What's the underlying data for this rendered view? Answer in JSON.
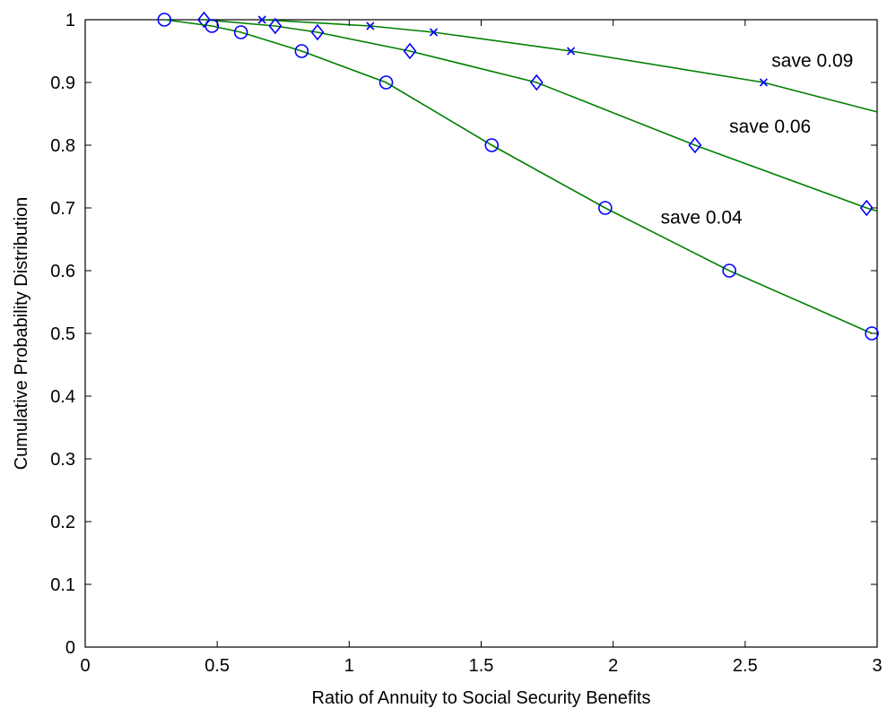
{
  "chart_data": {
    "type": "line",
    "title": "",
    "xlabel": "Ratio of Annuity to Social Security Benefits",
    "ylabel": "Cumulative Probability Distribution",
    "xlim": [
      0,
      3
    ],
    "ylim": [
      0,
      1
    ],
    "xticks": [
      "0",
      "0.5",
      "1",
      "1.5",
      "2",
      "2.5",
      "3"
    ],
    "yticks": [
      "0",
      "0.1",
      "0.2",
      "0.3",
      "0.4",
      "0.5",
      "0.6",
      "0.7",
      "0.8",
      "0.9",
      "1"
    ],
    "grid": false,
    "legend": "none",
    "line_color": "#008000",
    "marker_color": "#0000ff",
    "series": [
      {
        "marker": "x-mark",
        "x": [
          0.67,
          1.08,
          1.32,
          1.84,
          2.57,
          3.0
        ],
        "y": [
          1.0,
          0.99,
          0.98,
          0.95,
          0.9,
          0.853
        ],
        "marked": [
          true,
          true,
          true,
          true,
          true,
          false
        ]
      },
      {
        "marker": "diamond",
        "x": [
          0.45,
          0.72,
          0.88,
          1.23,
          1.71,
          2.31,
          2.96,
          3.0
        ],
        "y": [
          1.0,
          0.99,
          0.98,
          0.95,
          0.9,
          0.8,
          0.7,
          0.695
        ],
        "marked": [
          true,
          true,
          true,
          true,
          true,
          true,
          true,
          false
        ]
      },
      {
        "marker": "circle",
        "x": [
          0.3,
          0.48,
          0.59,
          0.82,
          1.14,
          1.54,
          1.97,
          2.44,
          2.98
        ],
        "y": [
          1.0,
          0.99,
          0.98,
          0.95,
          0.9,
          0.8,
          0.7,
          0.6,
          0.5
        ],
        "marked": [
          true,
          true,
          true,
          true,
          true,
          true,
          true,
          true,
          true
        ]
      }
    ],
    "annotations": [
      {
        "text": "save 0.09",
        "x": 2.6,
        "y": 0.925
      },
      {
        "text": "save 0.06",
        "x": 2.44,
        "y": 0.82
      },
      {
        "text": "save 0.04",
        "x": 2.18,
        "y": 0.675
      }
    ]
  }
}
